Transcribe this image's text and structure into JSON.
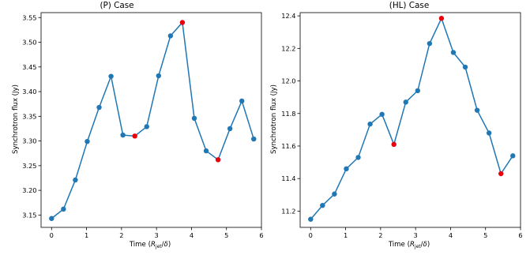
{
  "chart_data": [
    {
      "type": "line",
      "title": "(P) Case",
      "xlabel": "Time (R_jet/δ)",
      "ylabel": "Synchrotron flux (Jy)",
      "xlim": [
        -0.3,
        6.0
      ],
      "ylim": [
        3.125,
        3.56
      ],
      "xticks": [
        0,
        1,
        2,
        3,
        4,
        5,
        6
      ],
      "yticks": [
        3.15,
        3.2,
        3.25,
        3.3,
        3.35,
        3.4,
        3.45,
        3.5,
        3.55
      ],
      "grid": false,
      "x": [
        0.0,
        0.34,
        0.68,
        1.02,
        1.36,
        1.7,
        2.04,
        2.38,
        2.72,
        3.06,
        3.4,
        3.74,
        4.08,
        4.42,
        4.76,
        5.1,
        5.44,
        5.78
      ],
      "values": [
        3.143,
        3.162,
        3.221,
        3.299,
        3.368,
        3.431,
        3.312,
        3.31,
        3.329,
        3.432,
        3.513,
        3.54,
        3.346,
        3.28,
        3.262,
        3.325,
        3.381,
        3.304
      ],
      "highlight_indices": [
        7,
        11,
        14
      ],
      "colors": {
        "line": "#1f77b4",
        "highlight": "#e8000b"
      }
    },
    {
      "type": "line",
      "title": "(HL) Case",
      "xlabel": "Time (R_jet/δ)",
      "ylabel": "Synchrotron flux (Jy)",
      "xlim": [
        -0.3,
        6.0
      ],
      "ylim": [
        11.1,
        12.42
      ],
      "xticks": [
        0,
        1,
        2,
        3,
        4,
        5,
        6
      ],
      "yticks": [
        11.2,
        11.4,
        11.6,
        11.8,
        12.0,
        12.2,
        12.4
      ],
      "grid": false,
      "x": [
        0.0,
        0.34,
        0.68,
        1.02,
        1.36,
        1.7,
        2.04,
        2.38,
        2.72,
        3.06,
        3.4,
        3.74,
        4.08,
        4.42,
        4.76,
        5.1,
        5.44,
        5.78
      ],
      "values": [
        11.15,
        11.235,
        11.305,
        11.46,
        11.53,
        11.735,
        11.795,
        11.61,
        11.87,
        11.94,
        12.23,
        12.385,
        12.175,
        12.085,
        11.82,
        11.68,
        11.43,
        11.54
      ],
      "highlight_indices": [
        7,
        11,
        16
      ],
      "colors": {
        "line": "#1f77b4",
        "highlight": "#e8000b"
      }
    }
  ]
}
